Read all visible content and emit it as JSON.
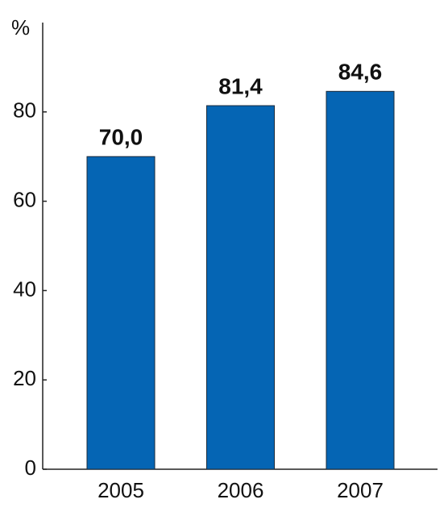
{
  "chart_data": {
    "type": "bar",
    "y_label": "%",
    "categories": [
      "2005",
      "2006",
      "2007"
    ],
    "values": [
      70.0,
      81.4,
      84.6
    ],
    "value_labels": [
      "70,0",
      "81,4",
      "84,6"
    ],
    "color": "#0565b4",
    "ylim": [
      0,
      100
    ],
    "yticks": [
      0,
      20,
      40,
      60,
      80
    ],
    "grid": false
  }
}
